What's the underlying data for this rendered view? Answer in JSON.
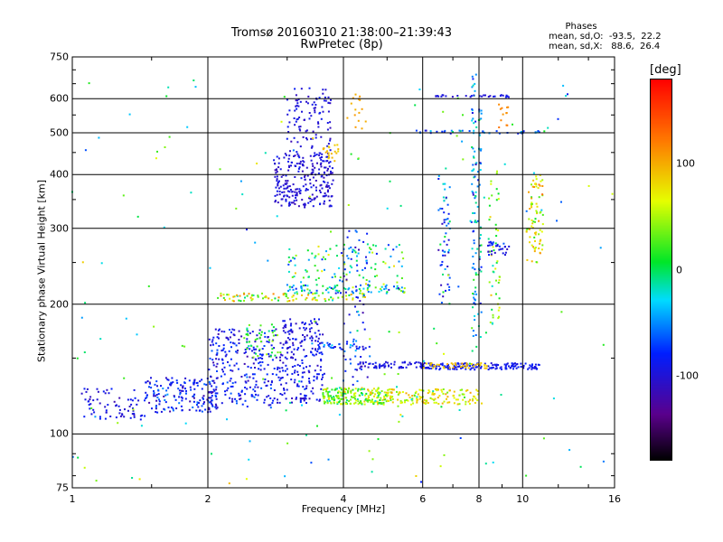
{
  "chart_data": {
    "type": "scatter",
    "title": "Tromsø 20160310 21:38:00–21:39:43",
    "subtitle": "RwPretec (8p)",
    "xlabel": "Frequency [MHz]",
    "ylabel": "Stationary phase Virtual Height [km]",
    "x_scale": "log",
    "y_scale": "log",
    "xlim": [
      1,
      16
    ],
    "ylim": [
      75,
      750
    ],
    "x_ticks": [
      "1",
      "2",
      "4",
      "6",
      "8",
      "10",
      "16"
    ],
    "y_ticks": [
      "75",
      "100",
      "200",
      "300",
      "400",
      "500",
      "600",
      "750"
    ],
    "x_grid": [
      2,
      4,
      6,
      8,
      10
    ],
    "y_grid": [
      100,
      200,
      300,
      400,
      500,
      600
    ],
    "grid": true,
    "phases_header": "Phases",
    "phases_lines": [
      "mean, sd,O:  -93.5,  22.2",
      "mean, sd,X:   88.6,  26.4"
    ],
    "colorbar": {
      "label": "[deg]",
      "range": [
        -180,
        180
      ],
      "ticks": [
        "100",
        "0",
        "-100"
      ],
      "tick_values": [
        100,
        0,
        -100
      ]
    },
    "clusters": [
      {
        "x": [
          1.05,
          1.45
        ],
        "y": [
          108,
          128
        ],
        "n": 70,
        "phase": -95,
        "spread": 25
      },
      {
        "x": [
          1.45,
          2.1
        ],
        "y": [
          112,
          135
        ],
        "n": 170,
        "phase": -85,
        "spread": 45
      },
      {
        "x": [
          2.0,
          2.9
        ],
        "y": [
          115,
          175
        ],
        "n": 260,
        "phase": -90,
        "spread": 35
      },
      {
        "x": [
          2.4,
          2.9
        ],
        "y": [
          150,
          180
        ],
        "n": 40,
        "phase": 20,
        "spread": 50
      },
      {
        "x": [
          2.9,
          3.6
        ],
        "y": [
          118,
          185
        ],
        "n": 200,
        "phase": -95,
        "spread": 25
      },
      {
        "x": [
          3.6,
          5.0
        ],
        "y": [
          117,
          128
        ],
        "n": 220,
        "phase": 40,
        "spread": 70
      },
      {
        "x": [
          5.0,
          8.0
        ],
        "y": [
          117,
          127
        ],
        "n": 140,
        "phase": 70,
        "spread": 50
      },
      {
        "x": [
          4.3,
          6.1
        ],
        "y": [
          142,
          147
        ],
        "n": 70,
        "phase": -95,
        "spread": 15
      },
      {
        "x": [
          6.1,
          11.0
        ],
        "y": [
          141,
          146
        ],
        "n": 150,
        "phase": -90,
        "spread": 15
      },
      {
        "x": [
          6.0,
          8.5
        ],
        "y": [
          142,
          146
        ],
        "n": 40,
        "phase": 90,
        "spread": 20
      },
      {
        "x": [
          3.3,
          4.6
        ],
        "y": [
          157,
          163
        ],
        "n": 40,
        "phase": -80,
        "spread": 60
      },
      {
        "x": [
          2.8,
          3.8
        ],
        "y": [
          335,
          450
        ],
        "n": 240,
        "phase": -100,
        "spread": 20
      },
      {
        "x": [
          3.0,
          3.75
        ],
        "y": [
          430,
          640
        ],
        "n": 110,
        "phase": -100,
        "spread": 20
      },
      {
        "x": [
          3.6,
          3.9
        ],
        "y": [
          430,
          470
        ],
        "n": 20,
        "phase": 95,
        "spread": 15
      },
      {
        "x": [
          2.1,
          4.5
        ],
        "y": [
          203,
          212
        ],
        "n": 90,
        "phase": 50,
        "spread": 90
      },
      {
        "x": [
          3.0,
          5.5
        ],
        "y": [
          212,
          222
        ],
        "n": 90,
        "phase": -20,
        "spread": 90
      },
      {
        "x": [
          3.0,
          5.5
        ],
        "y": [
          222,
          275
        ],
        "n": 100,
        "phase": 0,
        "spread": 100
      },
      {
        "x": [
          4.0,
          4.6
        ],
        "y": [
          130,
          300
        ],
        "n": 70,
        "phase": -80,
        "spread": 50
      },
      {
        "x": [
          6.5,
          6.9
        ],
        "y": [
          200,
          420
        ],
        "n": 60,
        "phase": -60,
        "spread": 80
      },
      {
        "x": [
          7.7,
          8.1
        ],
        "y": [
          150,
          690
        ],
        "n": 120,
        "phase": -40,
        "spread": 90
      },
      {
        "x": [
          8.4,
          8.9
        ],
        "y": [
          180,
          420
        ],
        "n": 50,
        "phase": 40,
        "spread": 70
      },
      {
        "x": [
          10.2,
          11.1
        ],
        "y": [
          250,
          400
        ],
        "n": 80,
        "phase": 70,
        "spread": 70
      },
      {
        "x": [
          8.3,
          9.4
        ],
        "y": [
          260,
          280
        ],
        "n": 30,
        "phase": -90,
        "spread": 30
      },
      {
        "x": [
          6.4,
          9.4
        ],
        "y": [
          605,
          612
        ],
        "n": 30,
        "phase": -95,
        "spread": 15
      },
      {
        "x": [
          5.5,
          11.0
        ],
        "y": [
          498,
          506
        ],
        "n": 40,
        "phase": -60,
        "spread": 60
      },
      {
        "x": [
          4.0,
          4.5
        ],
        "y": [
          510,
          620
        ],
        "n": 16,
        "phase": 105,
        "spread": 10
      },
      {
        "x": [
          8.8,
          9.3
        ],
        "y": [
          510,
          590
        ],
        "n": 12,
        "phase": 115,
        "spread": 10
      },
      {
        "x": [
          1.0,
          16.0
        ],
        "y": [
          75,
          700
        ],
        "n": 170,
        "phase": 0,
        "spread": 110
      }
    ]
  }
}
